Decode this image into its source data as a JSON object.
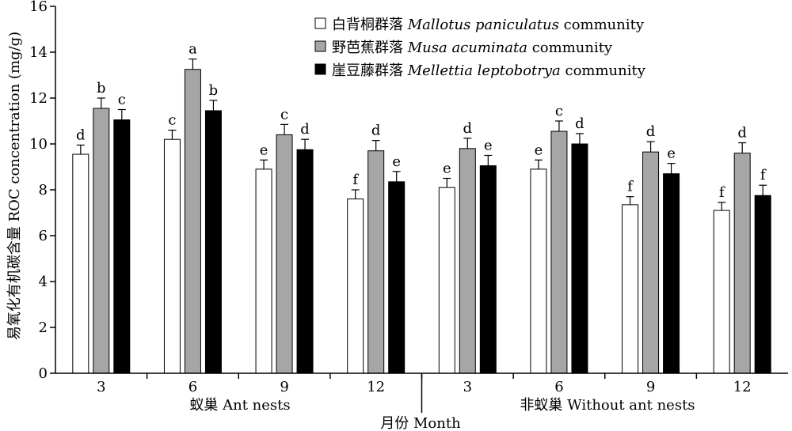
{
  "chart_data": {
    "type": "bar",
    "title": "",
    "ylabel": "易氧化有机碳含量 ROC concentration (mg/g)",
    "xlabel": "月份 Month",
    "ylim": [
      0,
      16
    ],
    "yticks": [
      "0",
      "2",
      "4",
      "6",
      "8",
      "10",
      "12",
      "14",
      "16"
    ],
    "error_bars": true,
    "grid": false,
    "legend_position": "top-right",
    "groups": [
      {
        "label": "蚁巢 Ant nests",
        "categories": [
          "3",
          "6",
          "9",
          "12"
        ]
      },
      {
        "label": "非蚁巢 Without ant nests",
        "categories": [
          "3",
          "6",
          "9",
          "12"
        ]
      }
    ],
    "series": [
      {
        "name": "白背桐群落 Mallotus paniculatus community",
        "name_cn": "白背桐群落",
        "name_latin": "Mallotus paniculatus",
        "name_suffix": "community",
        "color": "#ffffff",
        "values": [
          9.55,
          10.2,
          8.9,
          7.6,
          8.1,
          8.9,
          7.35,
          7.1
        ],
        "errors": [
          0.4,
          0.4,
          0.4,
          0.4,
          0.4,
          0.4,
          0.35,
          0.35
        ],
        "labels": [
          "d",
          "c",
          "e",
          "f",
          "e",
          "e",
          "f",
          "f"
        ]
      },
      {
        "name": "野芭蕉群落 Musa acuminata community",
        "name_cn": "野芭蕉群落",
        "name_latin": "Musa acuminata",
        "name_suffix": "community",
        "color": "#a6a6a6",
        "values": [
          11.55,
          13.25,
          10.4,
          9.7,
          9.8,
          10.55,
          9.65,
          9.6
        ],
        "errors": [
          0.45,
          0.45,
          0.45,
          0.45,
          0.45,
          0.45,
          0.45,
          0.45
        ],
        "labels": [
          "b",
          "a",
          "c",
          "d",
          "d",
          "c",
          "d",
          "d"
        ]
      },
      {
        "name": "崖豆藤群落 Mellettia leptobotrya community",
        "name_cn": "崖豆藤群落",
        "name_latin": "Mellettia leptobotrya",
        "name_suffix": "community",
        "color": "#000000",
        "values": [
          11.05,
          11.45,
          9.75,
          8.35,
          9.05,
          10.0,
          8.7,
          7.75
        ],
        "errors": [
          0.45,
          0.45,
          0.45,
          0.45,
          0.45,
          0.45,
          0.45,
          0.45
        ],
        "labels": [
          "c",
          "b",
          "d",
          "e",
          "e",
          "d",
          "e",
          "f"
        ]
      }
    ]
  }
}
